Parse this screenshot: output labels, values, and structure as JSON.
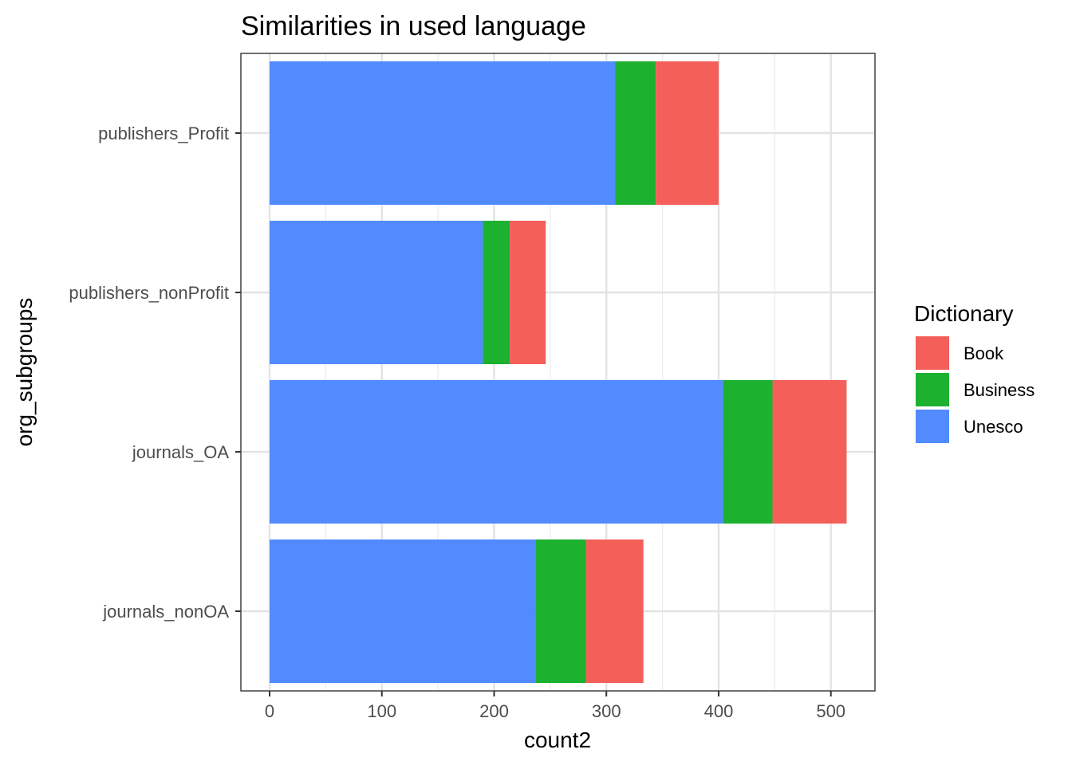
{
  "chart_data": {
    "type": "bar",
    "orientation": "horizontal",
    "stacked": true,
    "title": "Similarities in used language",
    "xlabel": "count2",
    "ylabel": "org_subgroups",
    "xlim": [
      -25,
      540
    ],
    "x_ticks": [
      0,
      100,
      200,
      300,
      400,
      500
    ],
    "categories": [
      "publishers_Profit",
      "publishers_nonProfit",
      "journals_OA",
      "journals_nonOA"
    ],
    "series": [
      {
        "name": "Unesco",
        "color": "#528BFF",
        "values": [
          308,
          190,
          404,
          237
        ]
      },
      {
        "name": "Business",
        "color": "#1CB12F",
        "values": [
          36,
          24,
          44,
          45
        ]
      },
      {
        "name": "Book",
        "color": "#F45F5A",
        "values": [
          56,
          32,
          66,
          51
        ]
      }
    ],
    "legend": {
      "title": "Dictionary",
      "placement": "right",
      "entries": [
        "Book",
        "Business",
        "Unesco"
      ]
    },
    "grid": true,
    "theme": "bw"
  }
}
